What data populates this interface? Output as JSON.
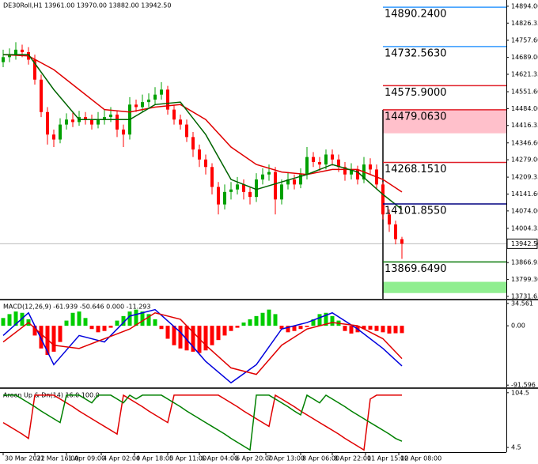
{
  "chart_data": [
    {
      "type": "candlestick",
      "title": "DE30Roll,H1  13961.00 13970.00 13882.00 13942.50",
      "xlim": [
        -0.5,
        79.5
      ],
      "ylim": [
        13722,
        14919
      ],
      "yticks": [
        {
          "value": 14894,
          "label": "14894.00"
        },
        14826.35,
        {
          "value": 14757.6,
          "label": "14757.60"
        },
        {
          "value": 14689,
          "label": "14689.00"
        },
        14621.35,
        {
          "value": 14551.6,
          "label": "14551.60"
        },
        {
          "value": 14484,
          "label": "14484.00"
        },
        14416.35,
        {
          "value": 14346.6,
          "label": "14346.60"
        },
        {
          "value": 14279,
          "label": "14279.00"
        },
        14209.35,
        {
          "value": 14141.6,
          "label": "14141.60"
        },
        {
          "value": 14074,
          "label": "14074.00"
        },
        14004.35,
        13866.95,
        {
          "value": 13799.3,
          "label": "13799.30"
        },
        13731.65
      ],
      "up_color": "#00a000",
      "down_color": "#ff0000",
      "open": [
        14670,
        14690,
        14700,
        14720,
        14710,
        14680,
        14600,
        14470,
        14380,
        14360,
        14420,
        14440,
        14430,
        14450,
        14440,
        14420,
        14440,
        14450,
        14460,
        14400,
        14380,
        14500,
        14490,
        14510,
        14520,
        14540,
        14560,
        14480,
        14440,
        14420,
        14370,
        14320,
        14280,
        14250,
        14170,
        14100,
        14150,
        14160,
        14180,
        14150,
        14130,
        14200,
        14220,
        14230,
        14120,
        14180,
        14200,
        14180,
        14220,
        14290,
        14270,
        14260,
        14300,
        14280,
        14250,
        14220,
        14240,
        14200,
        14260,
        14240,
        14180,
        14060,
        14020,
        13961
      ],
      "high": [
        14720,
        14725,
        14750,
        14740,
        14730,
        14700,
        14620,
        14490,
        14400,
        14445,
        14465,
        14470,
        14475,
        14470,
        14460,
        14470,
        14480,
        14490,
        14475,
        14420,
        14530,
        14520,
        14540,
        14545,
        14570,
        14590,
        14575,
        14500,
        14460,
        14440,
        14390,
        14340,
        14300,
        14265,
        14190,
        14180,
        14190,
        14210,
        14200,
        14170,
        14225,
        14245,
        14260,
        14250,
        14200,
        14230,
        14220,
        14245,
        14330,
        14310,
        14290,
        14320,
        14320,
        14300,
        14270,
        14265,
        14255,
        14290,
        14285,
        14260,
        14190,
        14080,
        14035,
        13970
      ],
      "low": [
        14650,
        14670,
        14680,
        14690,
        14660,
        14580,
        14450,
        14340,
        14330,
        14345,
        14400,
        14410,
        14415,
        14420,
        14400,
        14405,
        14420,
        14430,
        14370,
        14330,
        14360,
        14470,
        14470,
        14490,
        14500,
        14520,
        14460,
        14420,
        14400,
        14350,
        14290,
        14250,
        14220,
        14140,
        14060,
        14080,
        14120,
        14140,
        14120,
        14100,
        14110,
        14180,
        14195,
        14060,
        14100,
        14160,
        14160,
        14165,
        14200,
        14250,
        14235,
        14240,
        14255,
        14230,
        14195,
        14200,
        14180,
        14185,
        14220,
        14160,
        14040,
        13990,
        13940,
        13882
      ],
      "close": [
        14690,
        14700,
        14720,
        14710,
        14680,
        14600,
        14470,
        14380,
        14360,
        14420,
        14440,
        14430,
        14450,
        14440,
        14420,
        14440,
        14450,
        14460,
        14400,
        14380,
        14500,
        14490,
        14510,
        14520,
        14540,
        14560,
        14480,
        14440,
        14420,
        14370,
        14320,
        14280,
        14250,
        14170,
        14100,
        14150,
        14160,
        14180,
        14150,
        14130,
        14200,
        14220,
        14230,
        14120,
        14180,
        14200,
        14180,
        14220,
        14290,
        14270,
        14260,
        14300,
        14280,
        14250,
        14220,
        14240,
        14200,
        14260,
        14240,
        14180,
        14060,
        14020,
        13961,
        13942.5
      ],
      "moving_averages": [
        {
          "color": "#e00000",
          "x": [
            0,
            4,
            8,
            12,
            16,
            20,
            24,
            28,
            32,
            36,
            40,
            44,
            48,
            52,
            56,
            60,
            63
          ],
          "values": [
            14700,
            14695,
            14640,
            14560,
            14480,
            14470,
            14490,
            14500,
            14440,
            14330,
            14260,
            14230,
            14220,
            14240,
            14240,
            14200,
            14150
          ]
        },
        {
          "color": "#006400",
          "x": [
            0,
            4,
            8,
            12,
            16,
            20,
            24,
            28,
            32,
            36,
            40,
            44,
            48,
            52,
            56,
            60,
            63
          ],
          "values": [
            14700,
            14700,
            14560,
            14440,
            14440,
            14440,
            14500,
            14510,
            14380,
            14200,
            14160,
            14190,
            14220,
            14260,
            14230,
            14140,
            14080
          ]
        }
      ],
      "current_price": {
        "value": 13942.5,
        "label": "13942.50"
      },
      "session_start_x": 60,
      "zones": [
        {
          "from": 14385,
          "to": 14479.063,
          "color": "#ffc0cb"
        },
        {
          "from": 13745,
          "to": 13790,
          "color": "#90ee90"
        }
      ],
      "levels": [
        {
          "value": 14890.24,
          "label": "14890.2400",
          "color": "#3399ff"
        },
        {
          "value": 14732.563,
          "label": "14732.5630",
          "color": "#3399ff"
        },
        {
          "value": 14575.9,
          "label": "14575.9000",
          "color": "#e0202a"
        },
        {
          "value": 14479.063,
          "label": "14479.0630",
          "color": "#e0202a"
        },
        {
          "value": 14268.151,
          "label": "14268.1510",
          "color": "#e0202a"
        },
        {
          "value": 14101.855,
          "label": "14101.8550",
          "color": "#000080"
        },
        {
          "value": 13869.649,
          "label": "13869.6490",
          "color": "#0a7a0a"
        }
      ]
    },
    {
      "type": "macd",
      "title": "MACD(12,26,9) -61.939 -50.646 0.000 -11.293",
      "xlim": [
        -0.5,
        79.5
      ],
      "ylim": [
        -95,
        38
      ],
      "yticks": [
        34.561,
        {
          "value": 0,
          "label": "0.00"
        },
        -91.596
      ],
      "positive_color": "#00cc00",
      "negative_color": "#ff0000",
      "histogram": [
        12,
        18,
        22,
        20,
        10,
        -15,
        -35,
        -45,
        -40,
        -25,
        8,
        20,
        22,
        12,
        -5,
        -10,
        -8,
        -3,
        8,
        15,
        22,
        25,
        22,
        18,
        10,
        -5,
        -20,
        -30,
        -35,
        -38,
        -40,
        -42,
        -38,
        -30,
        -22,
        -15,
        -8,
        -3,
        5,
        10,
        15,
        20,
        25,
        18,
        -5,
        -10,
        -8,
        -5,
        -2,
        10,
        18,
        20,
        15,
        8,
        -8,
        -12,
        -10,
        -5,
        -6,
        -8,
        -10,
        -12,
        -11.5,
        -11.293
      ],
      "macd_line": {
        "color": "#0000dd",
        "x": [
          0,
          4,
          8,
          12,
          16,
          20,
          24,
          28,
          32,
          36,
          40,
          44,
          48,
          52,
          56,
          60,
          63
        ],
        "values": [
          -15,
          20,
          -60,
          -15,
          -25,
          15,
          25,
          -10,
          -55,
          -88,
          -60,
          -5,
          5,
          20,
          -5,
          -35,
          -61.939
        ]
      },
      "signal_line": {
        "color": "#e00000",
        "x": [
          0,
          4,
          8,
          12,
          16,
          20,
          24,
          28,
          32,
          36,
          40,
          44,
          48,
          52,
          56,
          60,
          63
        ],
        "values": [
          -25,
          5,
          -30,
          -35,
          -20,
          -5,
          20,
          10,
          -30,
          -65,
          -75,
          -30,
          -5,
          5,
          0,
          -20,
          -50.646
        ]
      }
    },
    {
      "type": "aroon",
      "title": "Aroon Up & Dn(14) 16.0 100.0",
      "xlim": [
        -0.5,
        79.5
      ],
      "ylim": [
        -4,
        110
      ],
      "yticks": [
        104.5,
        4.5
      ],
      "series": [
        {
          "color": "#e00000",
          "values": [
            50,
            43,
            36,
            29,
            21,
            100,
            100,
            100,
            100,
            93,
            86,
            79,
            71,
            64,
            57,
            50,
            43,
            36,
            29,
            100,
            93,
            86,
            79,
            71,
            64,
            57,
            50,
            100,
            100,
            100,
            100,
            100,
            100,
            100,
            100,
            93,
            86,
            79,
            71,
            64,
            57,
            50,
            43,
            100,
            93,
            86,
            79,
            71,
            64,
            57,
            50,
            43,
            36,
            29,
            21,
            14,
            7,
            0,
            93,
            100,
            100,
            100,
            100,
            100
          ]
        },
        {
          "color": "#008000",
          "values": [
            100,
            100,
            100,
            93,
            86,
            79,
            71,
            64,
            57,
            50,
            100,
            100,
            100,
            93,
            86,
            100,
            100,
            100,
            93,
            86,
            100,
            93,
            100,
            100,
            100,
            100,
            93,
            86,
            79,
            71,
            64,
            57,
            50,
            43,
            36,
            29,
            21,
            14,
            7,
            0,
            100,
            100,
            100,
            93,
            86,
            79,
            71,
            64,
            100,
            93,
            86,
            100,
            93,
            86,
            79,
            71,
            64,
            57,
            50,
            43,
            36,
            29,
            21,
            16
          ]
        }
      ],
      "xticks": [
        {
          "value": 0,
          "label": "30 Mar 2022"
        },
        {
          "value": 5,
          "label": "31 Mar 16:00"
        },
        {
          "value": 10,
          "label": "1 Apr 09:00"
        },
        {
          "value": 15.5,
          "label": "4 Apr 02:00"
        },
        {
          "value": 20.75,
          "label": "4 Apr 18:00"
        },
        {
          "value": 26,
          "label": "5 Apr 11:00"
        },
        {
          "value": 31,
          "label": "6 Apr 04:00"
        },
        {
          "value": 36.5,
          "label": "6 Apr 20:00"
        },
        {
          "value": 41.5,
          "label": "7 Apr 13:00"
        },
        {
          "value": 47,
          "label": "8 Apr 06:00"
        },
        {
          "value": 52,
          "label": "8 Apr 22:00"
        },
        {
          "value": 57.25,
          "label": "11 Apr 15:00"
        },
        {
          "value": 62.5,
          "label": "12 Apr 08:00"
        }
      ]
    }
  ]
}
